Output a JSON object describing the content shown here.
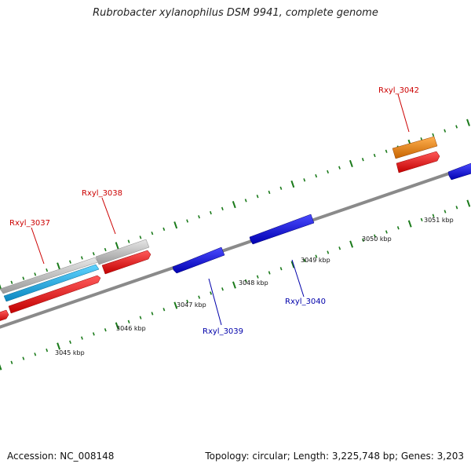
{
  "title": "Rubrobacter xylanophilus DSM 9941, complete genome",
  "footer": {
    "accession": "Accession: NC_008148",
    "topology": "Topology: circular; Length: 3,225,748 bp; Genes: 3,203"
  },
  "colors": {
    "backbone": "#8a8a8a",
    "tick": "#1a7a1a",
    "forward_gene": "#ee1111",
    "reverse_gene": "#1414e0",
    "label_forward": "#cc0000",
    "label_reverse": "#0000aa",
    "grey_feature": "#c4c4c4",
    "cyan_feature": "#1ab0e6",
    "orange_feature": "#f08a10"
  },
  "scale": {
    "tick_labels": [
      "3045 kbp",
      "3046 kbp",
      "3047 kbp",
      "3048 kbp",
      "3049 kbp",
      "3050 kbp",
      "3051 kbp"
    ]
  },
  "gene_labels": [
    {
      "text": "Rxyl_3037",
      "strand": "forward"
    },
    {
      "text": "Rxyl_3038",
      "strand": "forward"
    },
    {
      "text": "Rxyl_3039",
      "strand": "reverse"
    },
    {
      "text": "Rxyl_3040",
      "strand": "reverse"
    },
    {
      "text": "Rxyl_3042",
      "strand": "forward"
    }
  ]
}
